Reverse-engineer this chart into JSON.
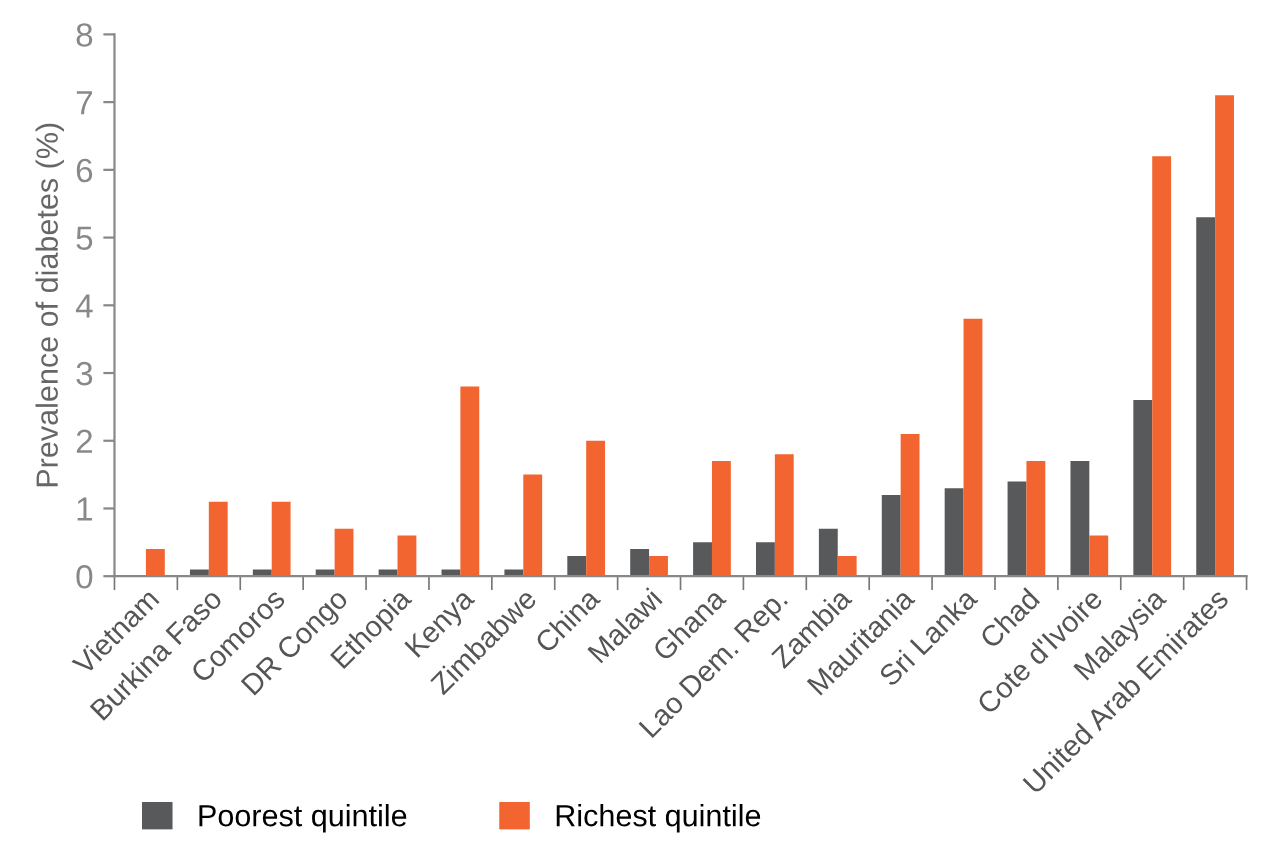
{
  "chart_data": {
    "type": "bar",
    "ylabel": "Prevalence of diabetes (%)",
    "categories": [
      "Vietnam",
      "Burkina Faso",
      "Comoros",
      "DR Congo",
      "Ethopia",
      "Kenya",
      "Zimbabwe",
      "China",
      "Malawi",
      "Ghana",
      "Lao Dem. Rep.",
      "Zambia",
      "Mauritania",
      "Sri Lanka",
      "Chad",
      "Cote d'Ivoire",
      "Malaysia",
      "United Arab Emirates"
    ],
    "series": [
      {
        "name": "Poorest quintile",
        "color": "#58595b",
        "values": [
          0,
          0.1,
          0.1,
          0.1,
          0.1,
          0.1,
          0.1,
          0.3,
          0.4,
          0.5,
          0.5,
          0.7,
          1.2,
          1.3,
          1.4,
          1.7,
          2.6,
          5.3
        ]
      },
      {
        "name": "Richest quintile",
        "color": "#f26531",
        "values": [
          0.4,
          1.1,
          1.1,
          0.7,
          0.6,
          2.8,
          1.5,
          2.0,
          0.3,
          1.7,
          1.8,
          0.3,
          2.1,
          3.8,
          1.7,
          0.6,
          6.2,
          7.1
        ]
      }
    ],
    "ylim": [
      0,
      8
    ],
    "yticks": [
      0,
      1,
      2,
      3,
      4,
      5,
      6,
      7,
      8
    ],
    "grid": false,
    "legend": "bottom"
  }
}
